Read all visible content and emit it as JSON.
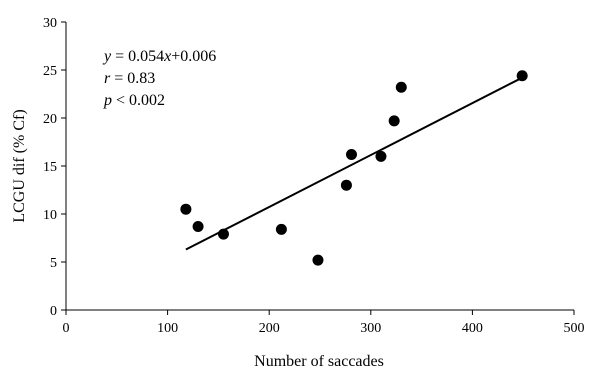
{
  "chart_data": {
    "type": "scatter",
    "xlabel": "Number of saccades",
    "ylabel": "LCGU dif (% Cf)",
    "xlim": [
      0,
      500
    ],
    "ylim": [
      0,
      30
    ],
    "xticks": [
      0,
      100,
      200,
      300,
      400,
      500
    ],
    "yticks": [
      0,
      5,
      10,
      15,
      20,
      25,
      30
    ],
    "grid": false,
    "points": [
      {
        "x": 118,
        "y": 10.5
      },
      {
        "x": 130,
        "y": 8.7
      },
      {
        "x": 155,
        "y": 7.9
      },
      {
        "x": 212,
        "y": 8.4
      },
      {
        "x": 248,
        "y": 5.2
      },
      {
        "x": 276,
        "y": 13.0
      },
      {
        "x": 281,
        "y": 16.2
      },
      {
        "x": 310,
        "y": 16.0
      },
      {
        "x": 323,
        "y": 19.7
      },
      {
        "x": 330,
        "y": 23.2
      },
      {
        "x": 449,
        "y": 24.4
      }
    ],
    "fit_line": {
      "x": [
        118,
        449
      ],
      "y": [
        6.3,
        24.2
      ]
    },
    "annotations": {
      "equation": {
        "var": "y",
        "rest": " = 0.054",
        "xvar": "x",
        "tail": "+0.006"
      },
      "r": {
        "var": "r",
        "rest": " = 0.83"
      },
      "p": {
        "var": "p",
        "rest": " < 0.002"
      }
    }
  }
}
